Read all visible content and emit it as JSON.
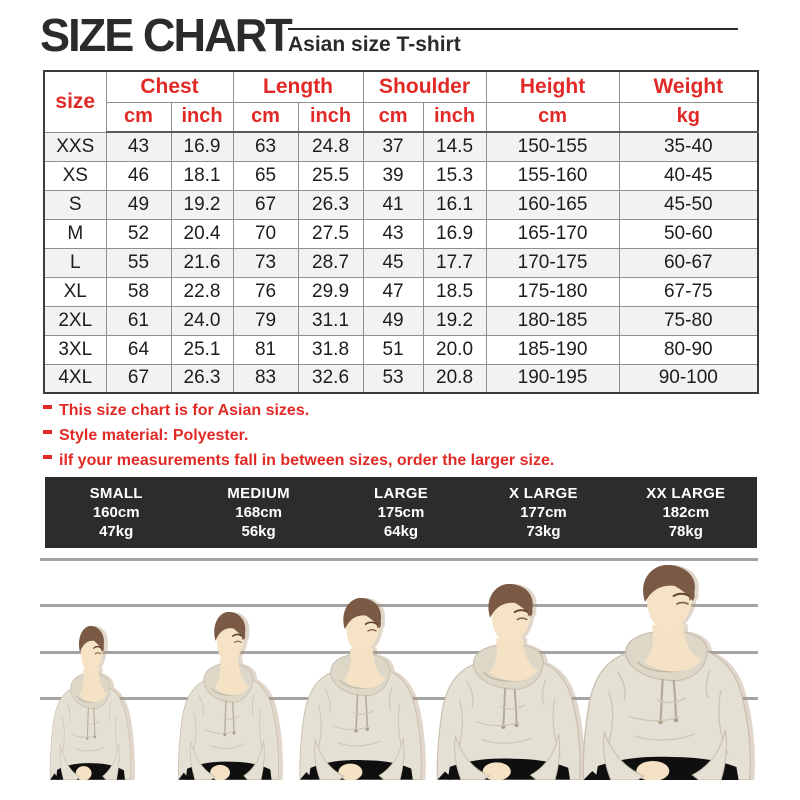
{
  "title": "SIZE CHART",
  "subtitle": "Asian size T-shirt",
  "table": {
    "size_header": "size",
    "col_groups": [
      {
        "label": "Chest",
        "units": [
          "cm",
          "inch"
        ]
      },
      {
        "label": "Length",
        "units": [
          "cm",
          "inch"
        ]
      },
      {
        "label": "Shoulder",
        "units": [
          "cm",
          "inch"
        ]
      },
      {
        "label": "Height",
        "units": [
          "cm"
        ]
      },
      {
        "label": "Weight",
        "units": [
          "kg"
        ]
      }
    ]
  },
  "notes": [
    "This size chart is for Asian sizes.",
    "Style material: Polyester.",
    "ilf your measurements fall in between sizes, order the larger size."
  ],
  "summary_bar": {
    "items": [
      {
        "name": "SMALL",
        "height": "160cm",
        "weight": "47kg"
      },
      {
        "name": "MEDIUM",
        "height": "168cm",
        "weight": "56kg"
      },
      {
        "name": "LARGE",
        "height": "175cm",
        "weight": "64kg"
      },
      {
        "name": "X LARGE",
        "height": "177cm",
        "weight": "73kg"
      },
      {
        "name": "XX LARGE",
        "height": "182cm",
        "weight": "78kg"
      }
    ]
  },
  "chart_data": {
    "type": "table",
    "title": "SIZE CHART",
    "subtitle": "Asian size T-shirt",
    "columns": [
      "size",
      "Chest cm",
      "Chest inch",
      "Length cm",
      "Length inch",
      "Shoulder cm",
      "Shoulder inch",
      "Height cm",
      "Weight kg"
    ],
    "rows": [
      [
        "XXS",
        "43",
        "16.9",
        "63",
        "24.8",
        "37",
        "14.5",
        "150-155",
        "35-40"
      ],
      [
        "XS",
        "46",
        "18.1",
        "65",
        "25.5",
        "39",
        "15.3",
        "155-160",
        "40-45"
      ],
      [
        "S",
        "49",
        "19.2",
        "67",
        "26.3",
        "41",
        "16.1",
        "160-165",
        "45-50"
      ],
      [
        "M",
        "52",
        "20.4",
        "70",
        "27.5",
        "43",
        "16.9",
        "165-170",
        "50-60"
      ],
      [
        "L",
        "55",
        "21.6",
        "73",
        "28.7",
        "45",
        "17.7",
        "170-175",
        "60-67"
      ],
      [
        "XL",
        "58",
        "22.8",
        "76",
        "29.9",
        "47",
        "18.5",
        "175-180",
        "67-75"
      ],
      [
        "2XL",
        "61",
        "24.0",
        "79",
        "31.1",
        "49",
        "19.2",
        "180-185",
        "75-80"
      ],
      [
        "3XL",
        "64",
        "25.1",
        "81",
        "31.8",
        "51",
        "20.0",
        "185-190",
        "80-90"
      ],
      [
        "4XL",
        "67",
        "26.3",
        "83",
        "32.6",
        "53",
        "20.8",
        "190-195",
        "90-100"
      ]
    ]
  },
  "colors": {
    "accent_red": "#e12a26",
    "title_dark": "#2b2b2b",
    "bar_bg": "#2e2c2b",
    "row_alt": "#f2f2f2",
    "guide_line_gray": "#a4a4a4"
  }
}
